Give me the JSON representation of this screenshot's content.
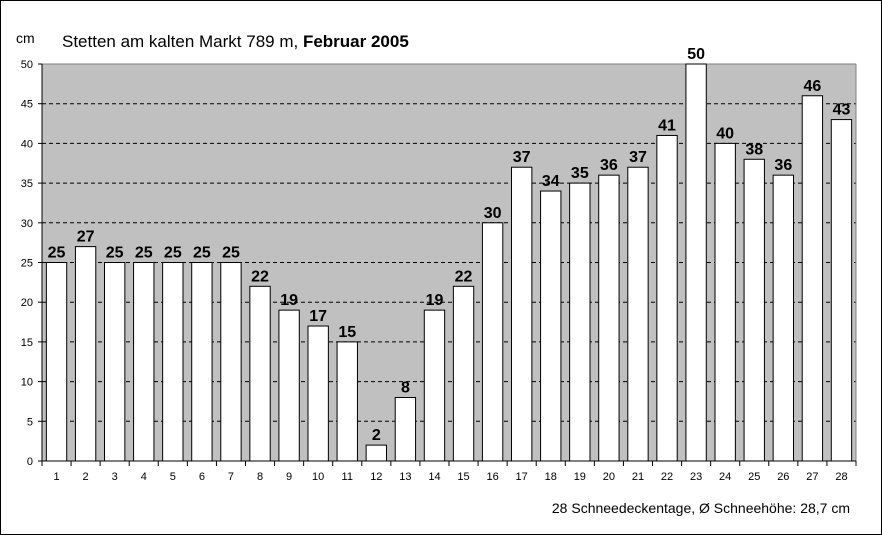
{
  "chart_data": {
    "type": "bar",
    "title": "Stetten am kalten Markt 789 m, ",
    "title_bold": "Februar 2005",
    "ylabel": "cm",
    "xlabel": "",
    "ylim": [
      0,
      50
    ],
    "ytick_step": 5,
    "grid": "horizontal-dashed",
    "categories": [
      "1",
      "2",
      "3",
      "4",
      "5",
      "6",
      "7",
      "8",
      "9",
      "10",
      "11",
      "12",
      "13",
      "14",
      "15",
      "16",
      "17",
      "18",
      "19",
      "20",
      "21",
      "22",
      "23",
      "24",
      "25",
      "26",
      "27",
      "28"
    ],
    "values": [
      25,
      27,
      25,
      25,
      25,
      25,
      25,
      22,
      19,
      17,
      15,
      2,
      8,
      19,
      22,
      30,
      37,
      34,
      35,
      36,
      37,
      41,
      50,
      40,
      38,
      36,
      46,
      43
    ],
    "footer": "28 Schneedeckentage,  Ø Schneehöhe:  28,7 cm",
    "colors": {
      "plot_bg": "#c0c0c0",
      "bar_fill": "#ffffff",
      "bar_stroke": "#000000"
    }
  }
}
